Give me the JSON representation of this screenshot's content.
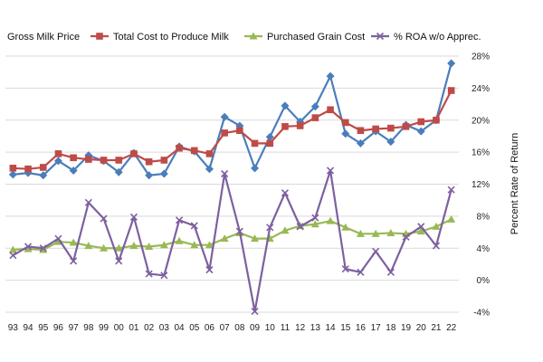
{
  "chart_data": {
    "type": "line",
    "title": "",
    "xlabel": "",
    "ylabel": "Percent Rate of Return",
    "right_axis": {
      "ylim": [
        -4,
        28
      ],
      "ticks": [
        -4,
        0,
        4,
        8,
        12,
        16,
        20,
        24,
        28
      ],
      "tick_labels": [
        "-4%",
        "0%",
        "4%",
        "8%",
        "12%",
        "16%",
        "20%",
        "24%",
        "28%"
      ]
    },
    "grid": true,
    "legend": "top",
    "categories": [
      "93",
      "94",
      "95",
      "96",
      "97",
      "98",
      "99",
      "00",
      "01",
      "02",
      "03",
      "04",
      "05",
      "06",
      "07",
      "08",
      "09",
      "10",
      "11",
      "12",
      "13",
      "14",
      "15",
      "16",
      "17",
      "18",
      "19",
      "20",
      "21",
      "22"
    ],
    "series": [
      {
        "name": "Gross Milk Price",
        "color": "#4a7ebb",
        "marker": "diamond",
        "values": [
          13.2,
          13.4,
          13.1,
          14.9,
          13.7,
          15.6,
          14.9,
          13.5,
          15.9,
          13.1,
          13.3,
          16.7,
          16.1,
          13.9,
          20.4,
          19.3,
          14.0,
          17.9,
          21.8,
          19.8,
          21.7,
          25.5,
          18.3,
          17.1,
          18.6,
          17.3,
          19.4,
          18.6,
          20.0,
          27.1
        ]
      },
      {
        "name": "Total Cost to Produce Milk",
        "color": "#be4b48",
        "marker": "square",
        "values": [
          14.0,
          13.9,
          14.1,
          15.8,
          15.3,
          15.1,
          15.0,
          15.0,
          15.8,
          14.8,
          15.0,
          16.5,
          16.2,
          15.8,
          18.4,
          18.7,
          17.1,
          17.1,
          19.2,
          19.3,
          20.3,
          21.3,
          19.7,
          18.7,
          18.9,
          19.0,
          19.2,
          19.8,
          20.0,
          23.7
        ]
      },
      {
        "name": "Purchased Grain Cost",
        "color": "#98b954",
        "marker": "triangle",
        "values": [
          3.8,
          3.9,
          3.8,
          4.8,
          4.7,
          4.3,
          4.0,
          4.0,
          4.3,
          4.2,
          4.4,
          4.9,
          4.4,
          4.4,
          5.2,
          5.9,
          5.2,
          5.2,
          6.2,
          6.8,
          7.0,
          7.4,
          6.6,
          5.8,
          5.8,
          5.9,
          5.8,
          6.1,
          6.7,
          7.6
        ]
      },
      {
        "name": "% ROA w/o Apprec.",
        "color": "#7d60a0",
        "marker": "x",
        "values": [
          3.1,
          4.2,
          4.0,
          5.2,
          2.4,
          9.7,
          7.7,
          2.4,
          7.9,
          0.8,
          0.6,
          7.5,
          6.8,
          1.3,
          13.3,
          6.1,
          -3.9,
          6.6,
          10.9,
          6.7,
          7.8,
          13.7,
          1.4,
          1.0,
          3.6,
          1.0,
          5.4,
          6.7,
          4.3,
          11.3
        ]
      }
    ]
  }
}
